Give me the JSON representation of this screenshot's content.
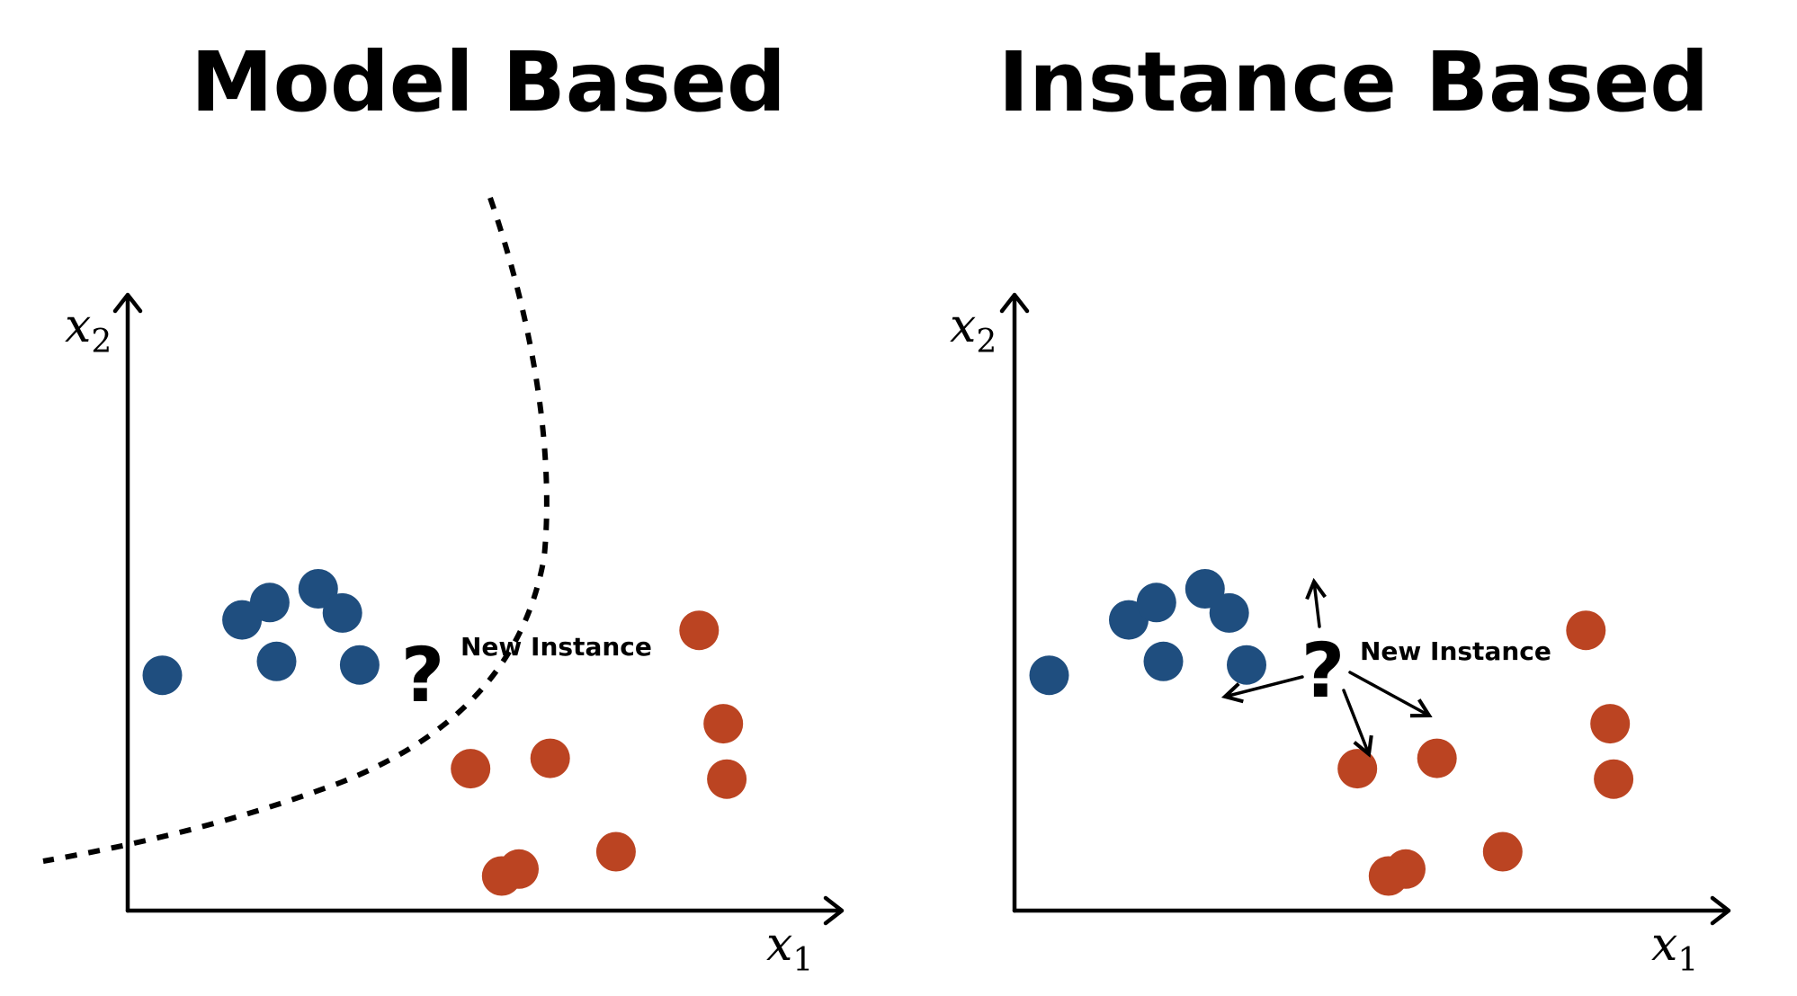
{
  "titles": {
    "left": "Model Based",
    "right": "Instance Based"
  },
  "axes": {
    "x": "x",
    "x_sub": "1",
    "y": "x",
    "y_sub": "2"
  },
  "new_instance": {
    "symbol": "?",
    "label": "New Instance"
  },
  "colors": {
    "class_a": "#1f4e7f",
    "class_b": "#bb4422",
    "ink": "#000000"
  },
  "classes": {
    "class_a": [
      {
        "x": 1,
        "y": 6.8
      },
      {
        "x": 3.3,
        "y": 8.4
      },
      {
        "x": 4.1,
        "y": 8.9
      },
      {
        "x": 4.3,
        "y": 7.2
      },
      {
        "x": 6.7,
        "y": 7.1
      },
      {
        "x": 5.5,
        "y": 9.3
      },
      {
        "x": 6.2,
        "y": 8.6
      }
    ],
    "class_b": [
      {
        "x": 9.9,
        "y": 4.1
      },
      {
        "x": 11.3,
        "y": 1.2
      },
      {
        "x": 12.2,
        "y": 4.4
      },
      {
        "x": 14.1,
        "y": 1.7
      },
      {
        "x": 10.8,
        "y": 1.0
      },
      {
        "x": 16.5,
        "y": 8.1
      },
      {
        "x": 17.2,
        "y": 5.4
      },
      {
        "x": 17.3,
        "y": 3.8
      }
    ]
  }
}
